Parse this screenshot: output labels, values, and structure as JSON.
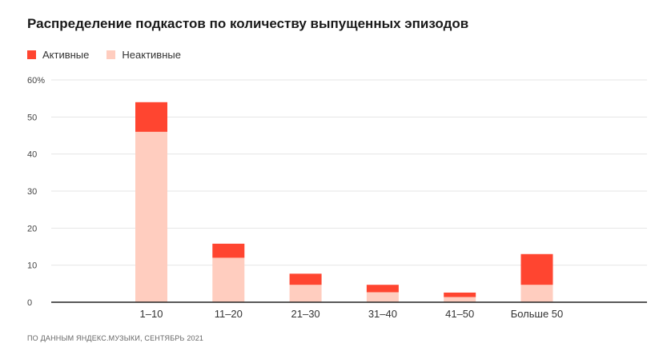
{
  "chart_data": {
    "type": "bar",
    "stacked": true,
    "title": "Распределение подкастов по количеству выпущенных эпизодов",
    "categories": [
      "1–10",
      "11–20",
      "21–30",
      "31–40",
      "41–50",
      "Больше 50"
    ],
    "series": [
      {
        "name": "Неактивные",
        "color": "#ffcdbf",
        "values": [
          46,
          12,
          4.7,
          2.7,
          1.4,
          4.7
        ]
      },
      {
        "name": "Активные",
        "color": "#ff4530",
        "values": [
          8,
          3.8,
          3,
          2,
          1.2,
          8.3
        ]
      }
    ],
    "yticks": [
      "0",
      "10",
      "20",
      "30",
      "40",
      "50",
      "60%"
    ],
    "ylim": [
      0,
      60
    ],
    "grid": true,
    "legend_position": "top-left",
    "source": "ПО ДАННЫМ ЯНДЕКС.МУЗЫКИ, СЕНТЯБРЬ 2021"
  },
  "legend": [
    {
      "label": "Активные",
      "color": "#ff4530"
    },
    {
      "label": "Неактивные",
      "color": "#ffcdbf"
    }
  ]
}
